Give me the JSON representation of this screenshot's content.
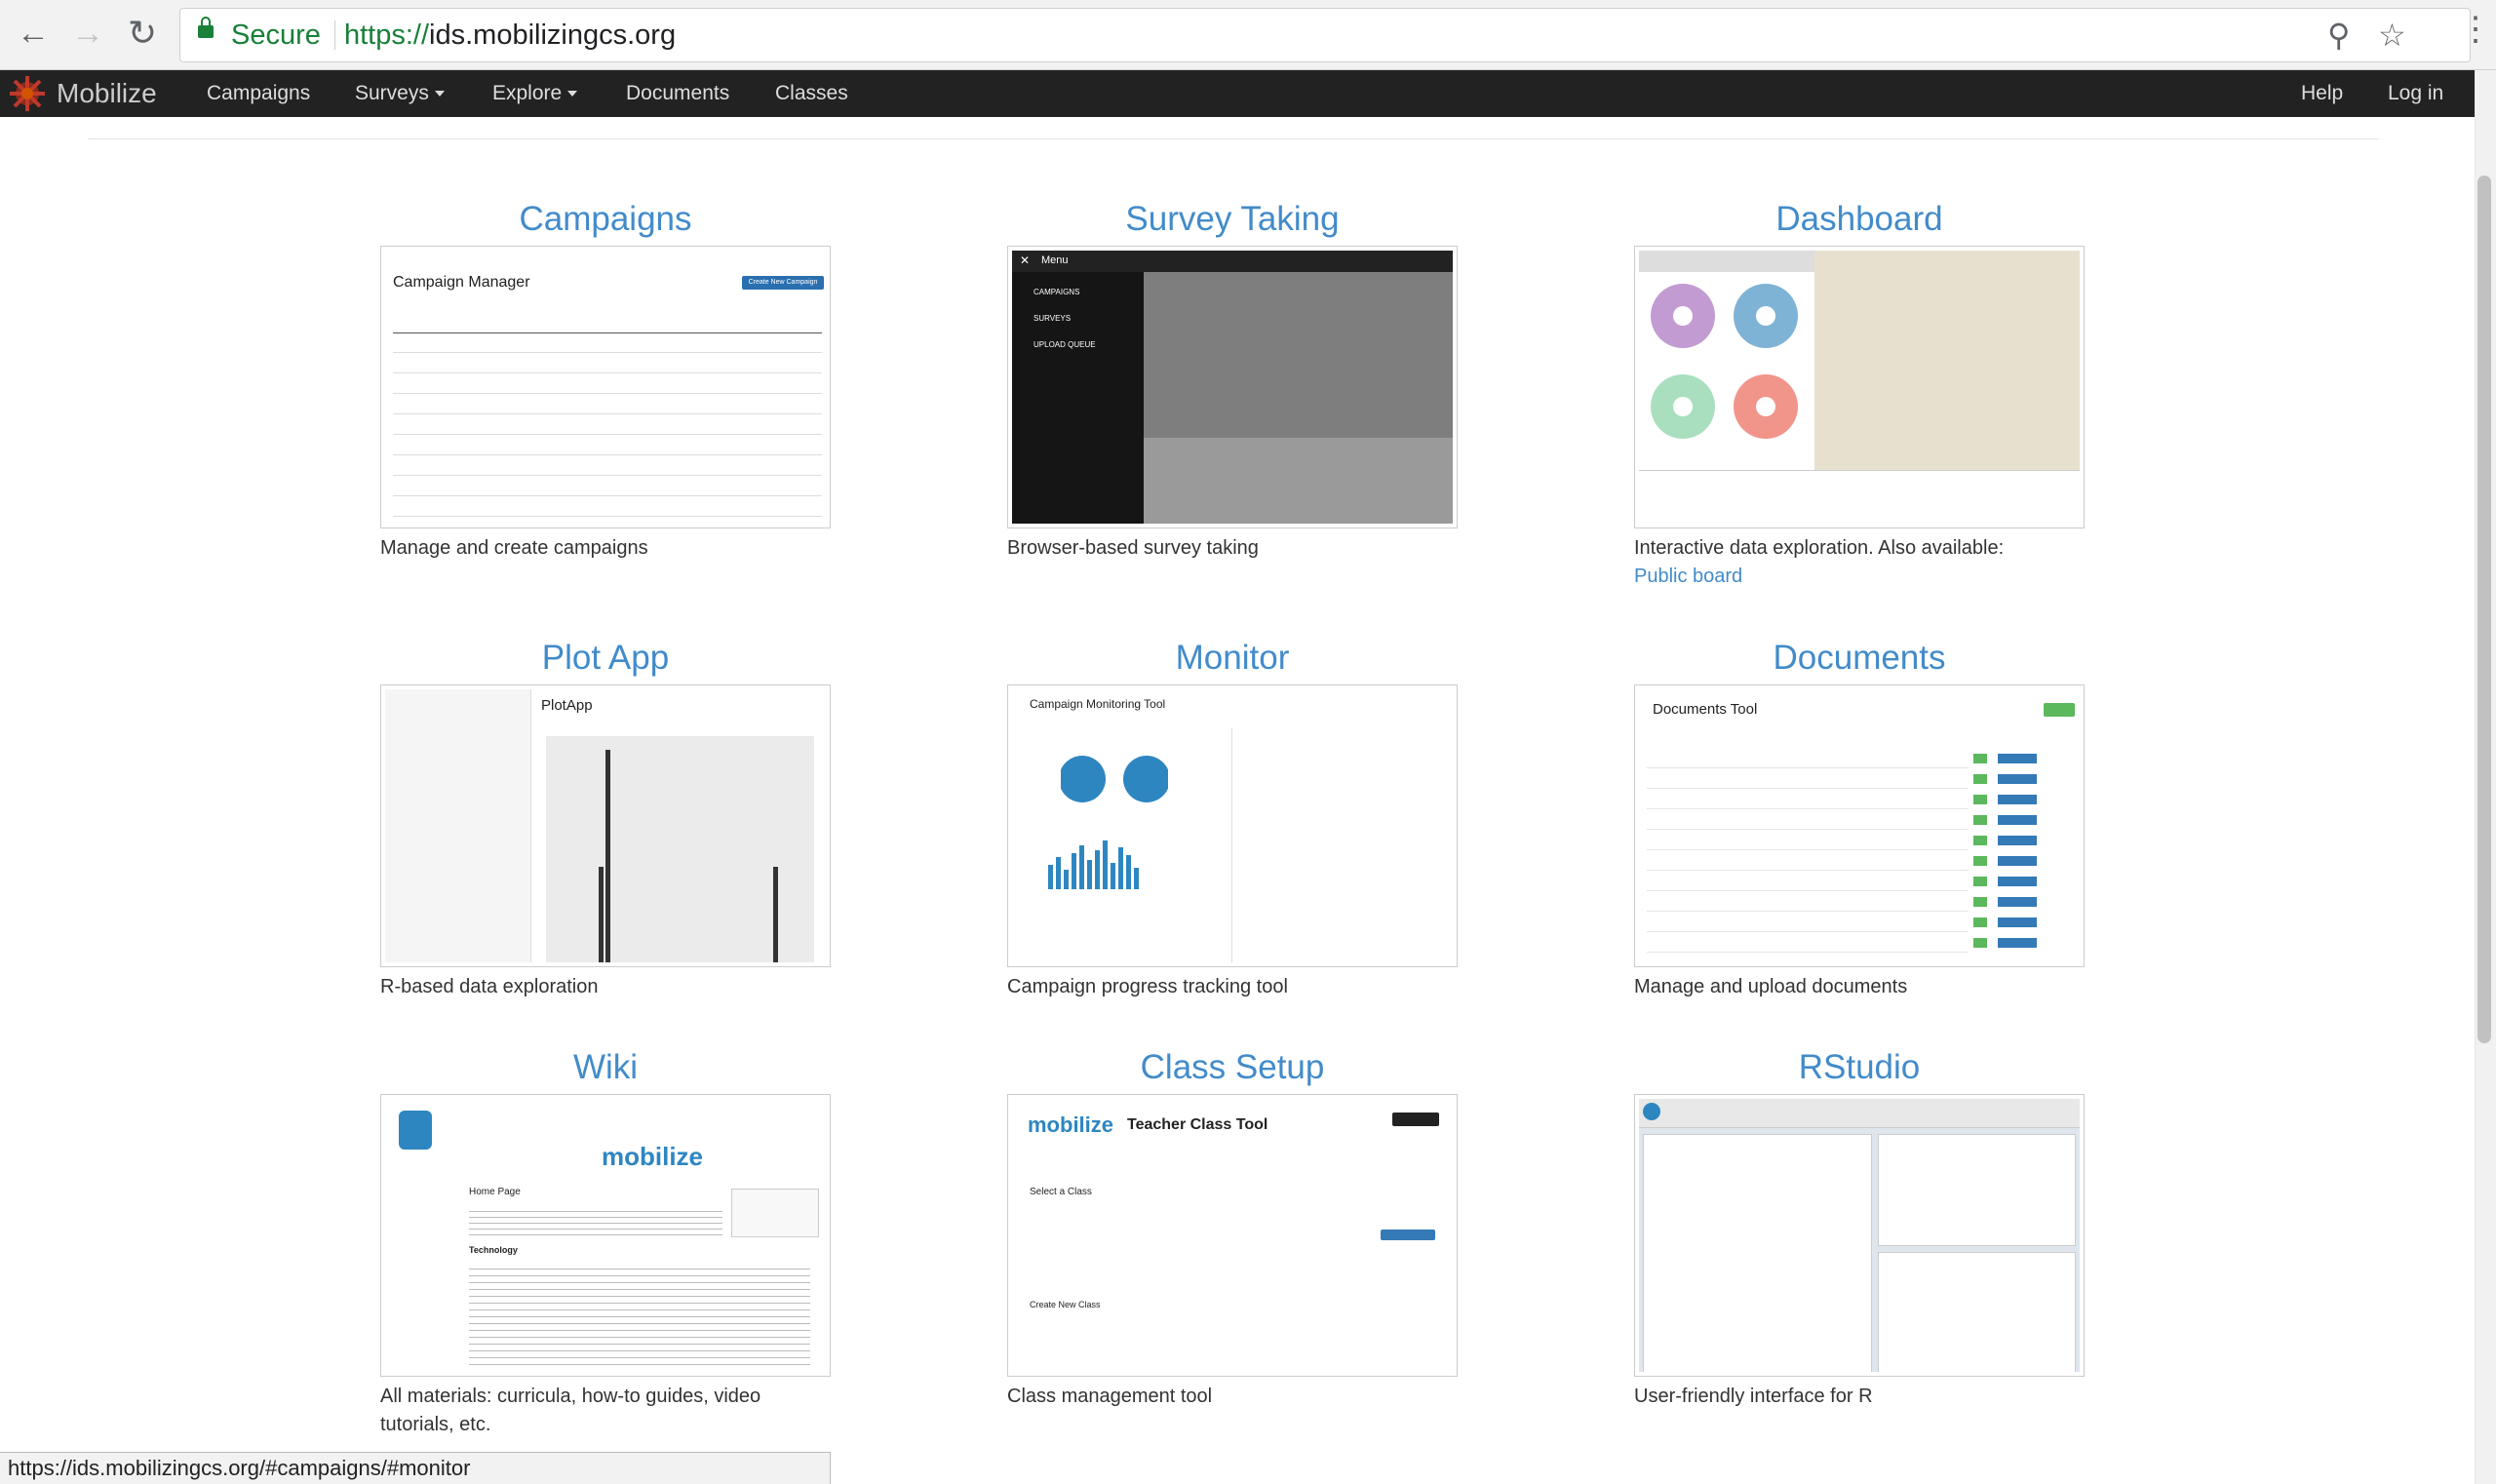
{
  "browser": {
    "secure_label": "Secure",
    "url_scheme": "https://",
    "url_host": "ids.mobilizingcs.org",
    "status_url": "https://ids.mobilizingcs.org/#campaigns/#monitor"
  },
  "navbar": {
    "brand": "Mobilize",
    "items": [
      "Campaigns",
      "Surveys",
      "Explore",
      "Documents",
      "Classes"
    ],
    "right": [
      "Help",
      "Log in"
    ]
  },
  "cards": [
    {
      "title": "Campaigns",
      "description": "Manage and create campaigns"
    },
    {
      "title": "Survey Taking",
      "description": "Browser-based survey taking"
    },
    {
      "title": "Dashboard",
      "description": "Interactive data exploration. Also available:",
      "link": "Public board"
    },
    {
      "title": "Plot App",
      "description": "R-based data exploration"
    },
    {
      "title": "Monitor",
      "description": "Campaign progress tracking tool"
    },
    {
      "title": "Documents",
      "description": "Manage and upload documents"
    },
    {
      "title": "Wiki",
      "description": "All materials: curricula, how-to guides, video tutorials, etc."
    },
    {
      "title": "Class Setup",
      "description": "Class management tool"
    },
    {
      "title": "RStudio",
      "description": "User-friendly interface for R"
    }
  ],
  "thumbs": {
    "campaign_manager": "Campaign Manager",
    "create_campaign": "Create New Campaign",
    "menu": "Menu",
    "menu_items": [
      "CAMPAIGNS",
      "SURVEYS",
      "UPLOAD QUEUE"
    ],
    "plotapp": "PlotApp",
    "monitor": "Campaign Monitoring Tool",
    "documents_tool": "Documents Tool",
    "teacher_class_tool": "Teacher Class Tool",
    "select_class": "Select a Class",
    "create_class": "Create New Class",
    "wiki_logo": "mobilize",
    "wiki_home": "Home Page",
    "wiki_tech": "Technology"
  },
  "colors": {
    "link_blue": "#428bca",
    "navbar": "#222222",
    "secure_green": "#188038"
  }
}
